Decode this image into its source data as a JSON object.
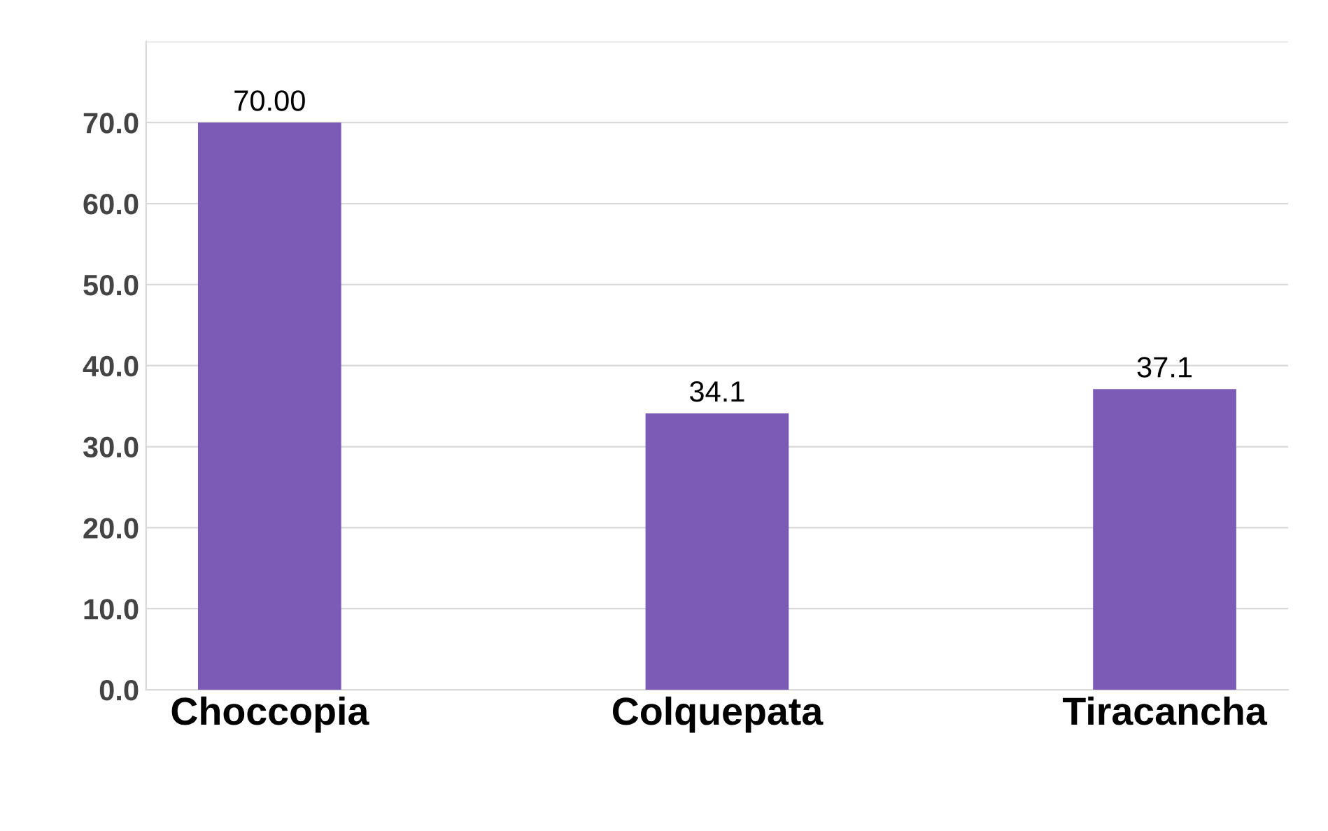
{
  "chart_data": {
    "type": "bar",
    "categories": [
      "Choccopia",
      "Colquepata",
      "Tiracancha"
    ],
    "values": [
      70.0,
      34.1,
      37.1
    ],
    "value_labels": [
      "70.00",
      "34.1",
      "37.1"
    ],
    "color": "#7b5bb5",
    "ylim": [
      0,
      80
    ],
    "yticks": [
      {
        "value": 0,
        "label": "0.0"
      },
      {
        "value": 10,
        "label": "10.0"
      },
      {
        "value": 20,
        "label": "20.0"
      },
      {
        "value": 30,
        "label": "30.0"
      },
      {
        "value": 40,
        "label": "40.0"
      },
      {
        "value": 50,
        "label": "50.0"
      },
      {
        "value": 60,
        "label": "60.0"
      },
      {
        "value": 70,
        "label": "70.0"
      },
      {
        "value": 80,
        "label": null
      }
    ],
    "grid": "y"
  }
}
